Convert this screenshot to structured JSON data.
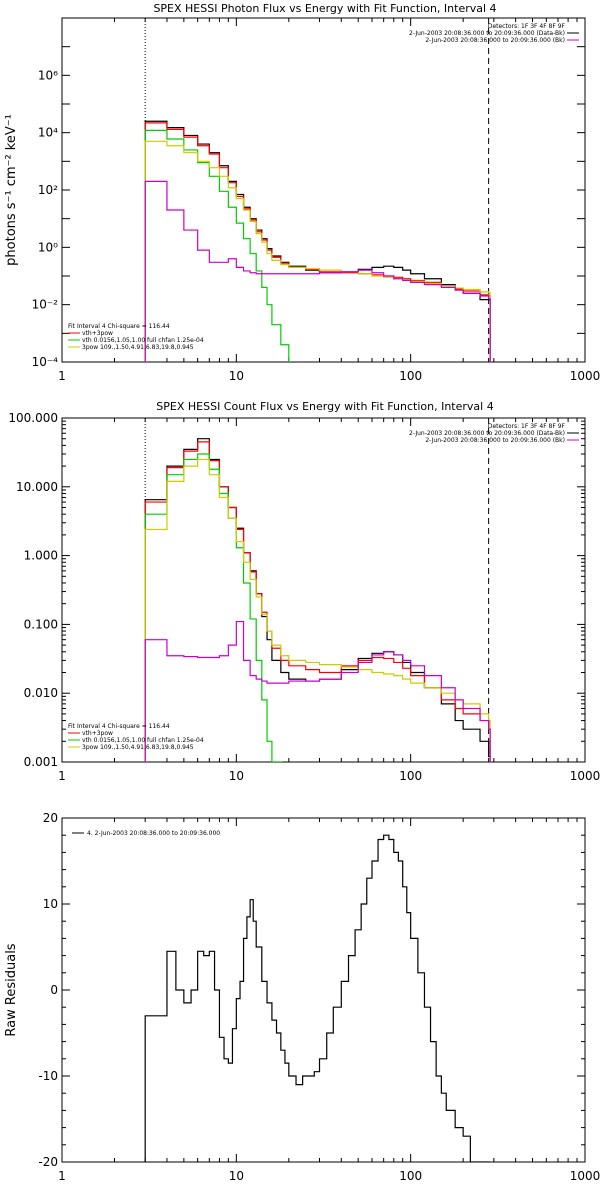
{
  "chart_data": [
    {
      "type": "line",
      "title": "SPEX HESSI Photon Flux vs Energy with Fit Function, Interval 4",
      "xlabel": "",
      "ylabel": "photons s⁻¹ cm⁻² keV⁻¹",
      "xscale": "log",
      "yscale": "log",
      "xlim": [
        1,
        1000
      ],
      "ylim": [
        0.0001,
        100000000
      ],
      "x_ticks": [
        "1",
        "10",
        "100",
        "1000"
      ],
      "y_ticks": [
        "10⁻⁴",
        "10⁻²",
        "10⁰",
        "10²",
        "10⁴",
        "10⁶"
      ],
      "vlines": [
        {
          "x": 3,
          "style": "dotted"
        },
        {
          "x": 280,
          "style": "dashed"
        }
      ],
      "legend_top_right": [
        {
          "text": "Detectors: 1F 3F 4F 8F 9F",
          "color": "#000000"
        },
        {
          "text": "2-Jun-2003 20:08:36.000 to 20:09:36.000 (Data-Bk)",
          "color": "#000000"
        },
        {
          "text": "2-Jun-2003 20:08:36.000 to 20:09:36.000 (Bk)",
          "color": "#cc00cc"
        }
      ],
      "legend_bottom_left": [
        {
          "text": "Fit Interval  4    Chi-square = 116.44",
          "color": "#000000"
        },
        {
          "text": "vth+3pow",
          "color": "#ff0000"
        },
        {
          "text": "vth 0.0156,1.05,1.00  full chfan 1.25e-04",
          "color": "#00cc00"
        },
        {
          "text": "3pow 109.,1.50,4.91,6.83,19.8,0.945",
          "color": "#cccc00"
        }
      ],
      "series": [
        {
          "color": "#000000",
          "x": [
            3,
            4,
            5,
            6,
            7,
            8,
            9,
            10,
            11,
            12,
            13,
            14,
            15,
            16,
            18,
            20,
            25,
            30,
            40,
            50,
            60,
            70,
            80,
            90,
            100,
            120,
            150,
            180,
            200,
            250,
            280
          ],
          "y": [
            25000,
            15000,
            8000,
            4000,
            2000,
            700,
            200,
            70,
            25,
            10,
            4,
            2,
            0.9,
            0.5,
            0.3,
            0.22,
            0.16,
            0.13,
            0.14,
            0.17,
            0.2,
            0.22,
            0.2,
            0.16,
            0.12,
            0.08,
            0.05,
            0.035,
            0.025,
            0.015,
            0.015
          ]
        },
        {
          "color": "#ff0000",
          "x": [
            3,
            4,
            5,
            6,
            7,
            8,
            9,
            10,
            11,
            12,
            13,
            14,
            15,
            16,
            18,
            20,
            25,
            30,
            40,
            50,
            60,
            70,
            80,
            90,
            100,
            120,
            150,
            180,
            200,
            250,
            280
          ],
          "y": [
            22000,
            13000,
            7000,
            3500,
            1800,
            600,
            180,
            60,
            22,
            9,
            3.5,
            1.8,
            0.8,
            0.45,
            0.28,
            0.2,
            0.17,
            0.14,
            0.13,
            0.12,
            0.11,
            0.1,
            0.09,
            0.08,
            0.07,
            0.06,
            0.045,
            0.035,
            0.03,
            0.022,
            0.02
          ]
        },
        {
          "color": "#00cc00",
          "x": [
            3,
            4,
            5,
            6,
            7,
            8,
            9,
            10,
            11,
            12,
            13,
            14,
            15,
            16,
            18,
            20
          ],
          "y": [
            12000,
            6000,
            2500,
            900,
            300,
            90,
            25,
            7,
            2,
            0.6,
            0.15,
            0.04,
            0.01,
            0.002,
            0.0004,
            0.0001
          ]
        },
        {
          "color": "#cccc00",
          "x": [
            3,
            4,
            5,
            6,
            7,
            8,
            9,
            10,
            11,
            12,
            13,
            14,
            15,
            16,
            18,
            20,
            25,
            30,
            40,
            50,
            60,
            70,
            80,
            90,
            100,
            120,
            150,
            180,
            200,
            250,
            280
          ],
          "y": [
            5000,
            3500,
            2000,
            1000,
            600,
            300,
            120,
            50,
            20,
            8,
            3,
            1.5,
            0.6,
            0.35,
            0.25,
            0.2,
            0.18,
            0.16,
            0.14,
            0.12,
            0.1,
            0.09,
            0.08,
            0.07,
            0.065,
            0.055,
            0.045,
            0.038,
            0.034,
            0.028,
            0.026
          ]
        },
        {
          "color": "#cc00cc",
          "x": [
            3,
            4,
            5,
            6,
            7,
            8,
            9,
            10,
            11,
            12,
            13,
            14,
            15,
            16,
            18,
            20,
            25,
            30,
            40,
            50,
            60,
            70,
            80,
            90,
            100,
            120,
            150,
            180,
            200,
            250,
            280
          ],
          "y": [
            200,
            20,
            4,
            0.8,
            0.3,
            0.3,
            0.4,
            0.2,
            0.15,
            0.13,
            0.12,
            0.12,
            0.12,
            0.12,
            0.12,
            0.12,
            0.12,
            0.13,
            0.14,
            0.16,
            0.13,
            0.1,
            0.08,
            0.07,
            0.06,
            0.05,
            0.04,
            0.032,
            0.025,
            0.02,
            0.016
          ]
        }
      ]
    },
    {
      "type": "line",
      "title": "SPEX HESSI Count Flux vs Energy with Fit Function, Interval 4",
      "xlabel": "",
      "ylabel": "",
      "xscale": "log",
      "yscale": "log",
      "xlim": [
        1,
        1000
      ],
      "ylim": [
        0.001,
        100
      ],
      "x_ticks": [
        "1",
        "10",
        "100",
        "1000"
      ],
      "y_ticks": [
        "0.001",
        "0.010",
        "0.100",
        "1.000",
        "10.000",
        "100.000"
      ],
      "vlines": [
        {
          "x": 3,
          "style": "dotted"
        },
        {
          "x": 280,
          "style": "dashed"
        }
      ],
      "legend_top_right": [
        {
          "text": "Detectors: 1F 3F 4F 8F 9F",
          "color": "#000000"
        },
        {
          "text": "2-Jun-2003 20:08:36.000 to 20:09:36.000 (Data-Bk)",
          "color": "#000000"
        },
        {
          "text": "2-Jun-2003 20:08:36.000 to 20:09:36.000 (Bk)",
          "color": "#cc00cc"
        }
      ],
      "legend_bottom_left": [
        {
          "text": "Fit Interval  4    Chi-square = 116.44",
          "color": "#000000"
        },
        {
          "text": "vth+3pow",
          "color": "#ff0000"
        },
        {
          "text": "vth 0.0156,1.05,1.00  full chfan 1.25e-04",
          "color": "#00cc00"
        },
        {
          "text": "3pow 109.,1.50,4.91,6.83,19.8,0.945",
          "color": "#cccc00"
        }
      ],
      "series": [
        {
          "color": "#000000",
          "x": [
            3,
            4,
            5,
            6,
            7,
            8,
            9,
            10,
            11,
            12,
            13,
            14,
            15,
            16,
            18,
            20,
            25,
            30,
            40,
            50,
            60,
            70,
            80,
            90,
            100,
            120,
            150,
            180,
            200,
            250,
            280
          ],
          "y": [
            6.5,
            20,
            35,
            50,
            25,
            10,
            5,
            2.5,
            1.1,
            0.6,
            0.28,
            0.13,
            0.06,
            0.03,
            0.02,
            0.016,
            0.015,
            0.016,
            0.022,
            0.032,
            0.038,
            0.04,
            0.036,
            0.028,
            0.02,
            0.012,
            0.007,
            0.004,
            0.003,
            0.002,
            0.0012
          ]
        },
        {
          "color": "#ff0000",
          "x": [
            3,
            4,
            5,
            6,
            7,
            8,
            9,
            10,
            11,
            12,
            13,
            14,
            15,
            16,
            18,
            20,
            25,
            30,
            40,
            50,
            60,
            70,
            80,
            90,
            100,
            120,
            150,
            180,
            200,
            250,
            280
          ],
          "y": [
            6,
            19,
            33,
            45,
            24,
            10,
            5,
            2.4,
            1.1,
            0.58,
            0.28,
            0.15,
            0.08,
            0.045,
            0.03,
            0.025,
            0.022,
            0.02,
            0.025,
            0.03,
            0.033,
            0.032,
            0.028,
            0.023,
            0.018,
            0.012,
            0.008,
            0.006,
            0.005,
            0.004,
            0.003
          ]
        },
        {
          "color": "#00cc00",
          "x": [
            3,
            4,
            5,
            6,
            7,
            8,
            9,
            10,
            11,
            12,
            13,
            14,
            15,
            16,
            18
          ],
          "y": [
            4,
            15,
            25,
            30,
            18,
            8,
            3.5,
            1.3,
            0.4,
            0.12,
            0.03,
            0.008,
            0.002,
            0.0008,
            0.0005
          ]
        },
        {
          "color": "#cccc00",
          "x": [
            3,
            4,
            5,
            6,
            7,
            8,
            9,
            10,
            11,
            12,
            13,
            14,
            15,
            16,
            18,
            20,
            25,
            30,
            40,
            50,
            60,
            70,
            80,
            90,
            100,
            120,
            150,
            180,
            200,
            250,
            280
          ],
          "y": [
            2.4,
            12,
            20,
            25,
            15,
            7,
            3.5,
            1.6,
            0.8,
            0.45,
            0.25,
            0.14,
            0.08,
            0.05,
            0.035,
            0.03,
            0.028,
            0.026,
            0.024,
            0.022,
            0.02,
            0.019,
            0.018,
            0.016,
            0.014,
            0.012,
            0.01,
            0.008,
            0.007,
            0.005,
            0.004
          ]
        },
        {
          "color": "#cc00cc",
          "x": [
            3,
            4,
            5,
            6,
            7,
            8,
            9,
            10,
            11,
            12,
            13,
            14,
            15,
            16,
            18,
            20,
            25,
            30,
            40,
            50,
            60,
            70,
            80,
            90,
            100,
            120,
            150,
            180,
            200,
            250,
            280
          ],
          "y": [
            0.06,
            0.035,
            0.034,
            0.033,
            0.033,
            0.035,
            0.05,
            0.11,
            0.03,
            0.018,
            0.016,
            0.015,
            0.014,
            0.014,
            0.014,
            0.015,
            0.015,
            0.016,
            0.02,
            0.028,
            0.036,
            0.04,
            0.036,
            0.03,
            0.025,
            0.018,
            0.012,
            0.008,
            0.006,
            0.004,
            0.003
          ]
        }
      ]
    },
    {
      "type": "line",
      "title": "",
      "xlabel": "",
      "ylabel": "Raw Residuals",
      "xscale": "log",
      "yscale": "linear",
      "xlim": [
        1,
        1000
      ],
      "ylim": [
        -20,
        20
      ],
      "x_ticks": [
        "1",
        "10",
        "100",
        "1000"
      ],
      "y_ticks": [
        "-20",
        "-10",
        "0",
        "10",
        "20"
      ],
      "legend_top_left": [
        {
          "text": "4.  2-Jun-2003 20:08:36.000 to 20:09:36.000",
          "color": "#000000"
        }
      ],
      "series": [
        {
          "color": "#000000",
          "x": [
            3,
            4,
            4.5,
            5,
            5.5,
            6,
            6.5,
            7,
            7.5,
            8,
            8.5,
            9,
            9.5,
            10,
            10.5,
            11,
            11.5,
            12,
            12.5,
            13,
            14,
            15,
            16,
            17,
            18,
            19,
            20,
            22,
            24,
            26,
            28,
            30,
            33,
            36,
            40,
            44,
            48,
            52,
            56,
            60,
            65,
            70,
            75,
            80,
            85,
            90,
            95,
            100,
            110,
            120,
            130,
            140,
            150,
            160,
            180,
            200,
            220,
            250,
            280
          ],
          "y": [
            -3,
            4.5,
            0,
            -1.5,
            0,
            4.5,
            4,
            4.5,
            0,
            -5.5,
            -8,
            -8.5,
            -4.5,
            -1,
            1,
            6,
            8.5,
            10.5,
            8,
            5,
            1,
            -1.5,
            -3.5,
            -5,
            -7,
            -8.5,
            -10,
            -11,
            -10,
            -10,
            -9.5,
            -8,
            -5,
            -2,
            1,
            4,
            7,
            10,
            13,
            15,
            17.5,
            18,
            17.5,
            16,
            15,
            12,
            9,
            6,
            2,
            -2,
            -6,
            -10,
            -12,
            -14,
            -16,
            -17,
            -20,
            -20,
            -20
          ]
        }
      ]
    }
  ]
}
